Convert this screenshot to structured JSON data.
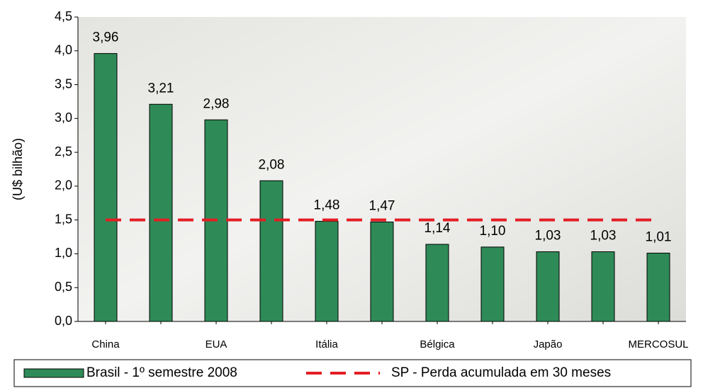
{
  "chart_data": {
    "type": "bar",
    "y_label": "(U$ bilhão)",
    "categories": [
      "China",
      null,
      "EUA",
      null,
      "Itália",
      null,
      "Bélgica",
      null,
      "Japão",
      null,
      "MERCOSUL"
    ],
    "series": [
      {
        "name": "Brasil - 1º semestre 2008",
        "color": "#2e8b57",
        "type": "bar",
        "values": [
          3.96,
          3.21,
          2.98,
          2.08,
          1.48,
          1.47,
          1.14,
          1.1,
          1.03,
          1.03,
          1.01
        ],
        "value_labels": [
          "3,96",
          "3,21",
          "2,98",
          "2,08",
          "1,48",
          "1,47",
          "1,14",
          "1,10",
          "1,03",
          "1,03",
          "1,01"
        ]
      },
      {
        "name": "SP - Perda acumulada em 30 meses",
        "color": "#e31e24",
        "type": "line",
        "dashed": true,
        "values": [
          1.5,
          1.5,
          1.5,
          1.5,
          1.5,
          1.5,
          1.5,
          1.5,
          1.5,
          1.5,
          1.5
        ]
      }
    ],
    "ylim": [
      0,
      4.5
    ],
    "yticks": [
      {
        "value": 0,
        "label": "0,0"
      },
      {
        "value": 0.5,
        "label": "0,5"
      },
      {
        "value": 1,
        "label": "1,0"
      },
      {
        "value": 1.5,
        "label": "1,5"
      },
      {
        "value": 2,
        "label": "2,0"
      },
      {
        "value": 2.5,
        "label": "2,5"
      },
      {
        "value": 3,
        "label": "3,0"
      },
      {
        "value": 3.5,
        "label": "3,5"
      },
      {
        "value": 4,
        "label": "4,0"
      },
      {
        "value": 4.5,
        "label": "4,5"
      }
    ],
    "legend": "bottom"
  }
}
